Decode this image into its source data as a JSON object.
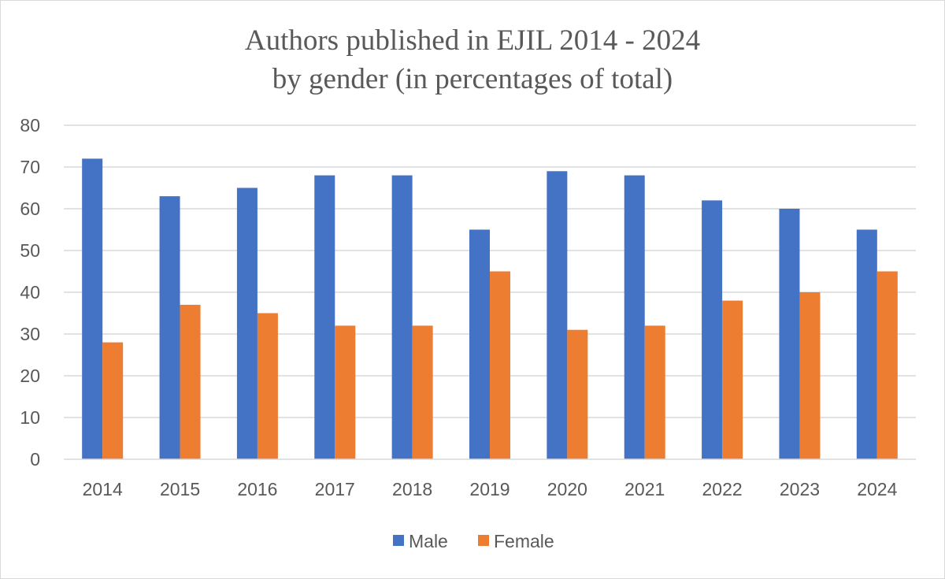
{
  "chart_data": {
    "type": "bar",
    "title": "Authors published in EJIL 2014 - 2024",
    "subtitle": "by gender (in percentages of total)",
    "categories": [
      "2014",
      "2015",
      "2016",
      "2017",
      "2018",
      "2019",
      "2020",
      "2021",
      "2022",
      "2023",
      "2024"
    ],
    "series": [
      {
        "name": "Male",
        "color": "#4472C4",
        "values": [
          72,
          63,
          65,
          68,
          68,
          55,
          69,
          68,
          62,
          60,
          55
        ]
      },
      {
        "name": "Female",
        "color": "#ED7D31",
        "values": [
          28,
          37,
          35,
          32,
          32,
          45,
          31,
          32,
          38,
          40,
          45
        ]
      }
    ],
    "ylim": [
      0,
      80
    ],
    "yticks": [
      "0",
      "10",
      "20",
      "30",
      "40",
      "50",
      "60",
      "70",
      "80"
    ],
    "grid": true,
    "legend_position": "bottom-center"
  }
}
